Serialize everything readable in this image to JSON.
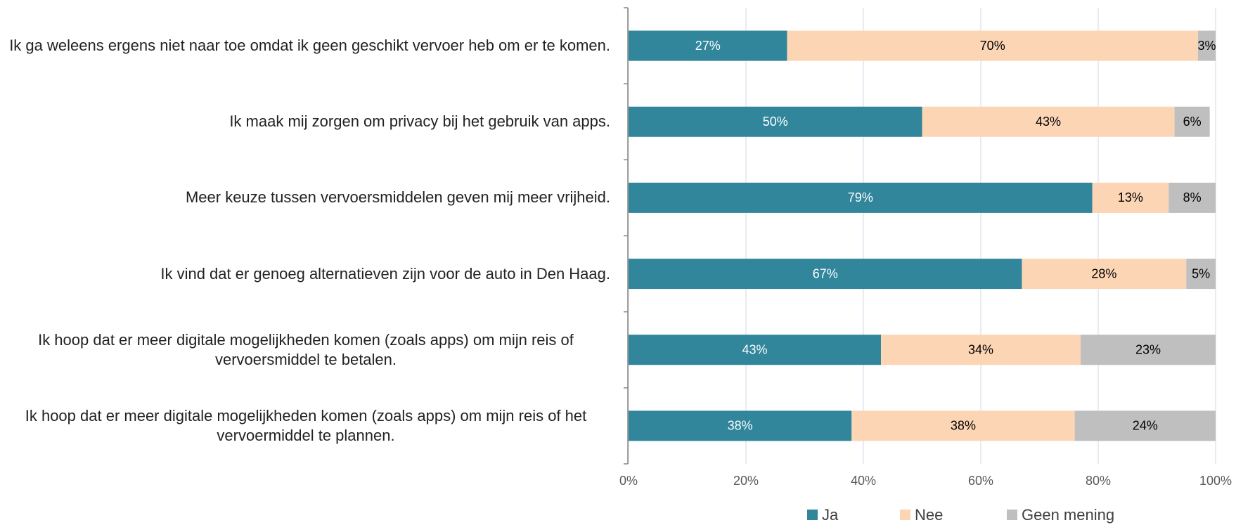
{
  "chart_data": {
    "type": "stacked-bar-horizontal",
    "categories": [
      "Ik ga weleens ergens niet naar toe omdat ik geen geschikt vervoer heb om er te komen.",
      "Ik maak mij zorgen om privacy bij het gebruik van apps.",
      "Meer keuze tussen vervoersmiddelen geven mij meer vrijheid.",
      "Ik vind dat er genoeg alternatieven zijn voor de auto in Den Haag.",
      "Ik hoop dat er meer digitale mogelijkheden komen (zoals apps) om mijn reis of vervoersmiddel te betalen.",
      "Ik hoop dat er meer digitale mogelijkheden komen (zoals apps) om mijn reis of het vervoermiddel te plannen."
    ],
    "series": [
      {
        "name": "Ja",
        "color": "#31869b",
        "values": [
          27,
          50,
          79,
          67,
          43,
          38
        ],
        "value_labels": [
          "27%",
          "50%",
          "79%",
          "67%",
          "43%",
          "38%"
        ]
      },
      {
        "name": "Nee",
        "color": "#fcd5b5",
        "values": [
          70,
          43,
          13,
          28,
          34,
          38
        ],
        "value_labels": [
          "70%",
          "43%",
          "13%",
          "28%",
          "34%",
          "38%"
        ]
      },
      {
        "name": "Geen mening",
        "color": "#bfbfbf",
        "values": [
          3,
          6,
          8,
          5,
          23,
          24
        ],
        "value_labels": [
          "3%",
          "6%",
          "8%",
          "5%",
          "23%",
          "24%"
        ]
      }
    ],
    "xlim": [
      0,
      100
    ],
    "xticks": [
      {
        "value": 0,
        "label": "0%"
      },
      {
        "value": 20,
        "label": "20%"
      },
      {
        "value": 40,
        "label": "40%"
      },
      {
        "value": 60,
        "label": "60%"
      },
      {
        "value": 80,
        "label": "80%"
      },
      {
        "value": 100,
        "label": "100%"
      }
    ],
    "grid": true,
    "legend": "bottom"
  }
}
